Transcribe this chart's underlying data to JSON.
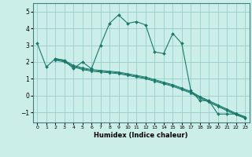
{
  "background_color": "#cceee8",
  "grid_color": "#99cccc",
  "line_color": "#1a7a6a",
  "xlabel": "Humidex (Indice chaleur)",
  "xlim": [
    -0.5,
    23.5
  ],
  "ylim": [
    -1.6,
    5.5
  ],
  "xticks": [
    0,
    1,
    2,
    3,
    4,
    5,
    6,
    7,
    8,
    9,
    10,
    11,
    12,
    13,
    14,
    15,
    16,
    17,
    18,
    19,
    20,
    21,
    22,
    23
  ],
  "yticks": [
    -1,
    0,
    1,
    2,
    3,
    4,
    5
  ],
  "series": [
    {
      "x": [
        0,
        1,
        2,
        3,
        4,
        5,
        6,
        7,
        8,
        9,
        10,
        11,
        12,
        13,
        14,
        15,
        16,
        17,
        18,
        19,
        20,
        21,
        22,
        23
      ],
      "y": [
        3.1,
        1.7,
        2.2,
        2.1,
        1.6,
        2.0,
        1.6,
        3.0,
        4.3,
        4.8,
        4.3,
        4.4,
        4.2,
        2.6,
        2.5,
        3.7,
        3.1,
        0.3,
        -0.3,
        -0.3,
        -1.1,
        -1.1,
        -1.1,
        -1.3
      ],
      "marker": true
    },
    {
      "x": [
        2,
        3,
        4,
        5,
        6,
        7,
        8,
        9,
        10,
        11,
        12,
        13,
        14,
        15,
        16,
        17,
        18,
        19,
        20,
        21,
        22,
        23
      ],
      "y": [
        2.2,
        2.1,
        1.8,
        1.65,
        1.55,
        1.5,
        1.45,
        1.4,
        1.3,
        1.2,
        1.1,
        0.95,
        0.8,
        0.65,
        0.45,
        0.25,
        -0.05,
        -0.3,
        -0.55,
        -0.8,
        -1.05,
        -1.25
      ],
      "marker": false
    },
    {
      "x": [
        2,
        3,
        4,
        5,
        6,
        7,
        8,
        9,
        10,
        11,
        12,
        13,
        14,
        15,
        16,
        17,
        18,
        19,
        20,
        21,
        22,
        23
      ],
      "y": [
        2.15,
        2.05,
        1.75,
        1.6,
        1.5,
        1.45,
        1.4,
        1.35,
        1.25,
        1.15,
        1.05,
        0.9,
        0.75,
        0.6,
        0.4,
        0.2,
        -0.1,
        -0.35,
        -0.6,
        -0.85,
        -1.1,
        -1.3
      ],
      "marker": false
    },
    {
      "x": [
        2,
        3,
        4,
        5,
        6,
        7,
        8,
        9,
        10,
        11,
        12,
        13,
        14,
        15,
        16,
        17,
        18,
        19,
        20,
        21,
        22,
        23
      ],
      "y": [
        2.1,
        2.0,
        1.7,
        1.55,
        1.45,
        1.4,
        1.35,
        1.3,
        1.2,
        1.1,
        1.0,
        0.85,
        0.7,
        0.55,
        0.35,
        0.15,
        -0.15,
        -0.4,
        -0.65,
        -0.9,
        -1.15,
        -1.35
      ],
      "marker": false
    }
  ]
}
